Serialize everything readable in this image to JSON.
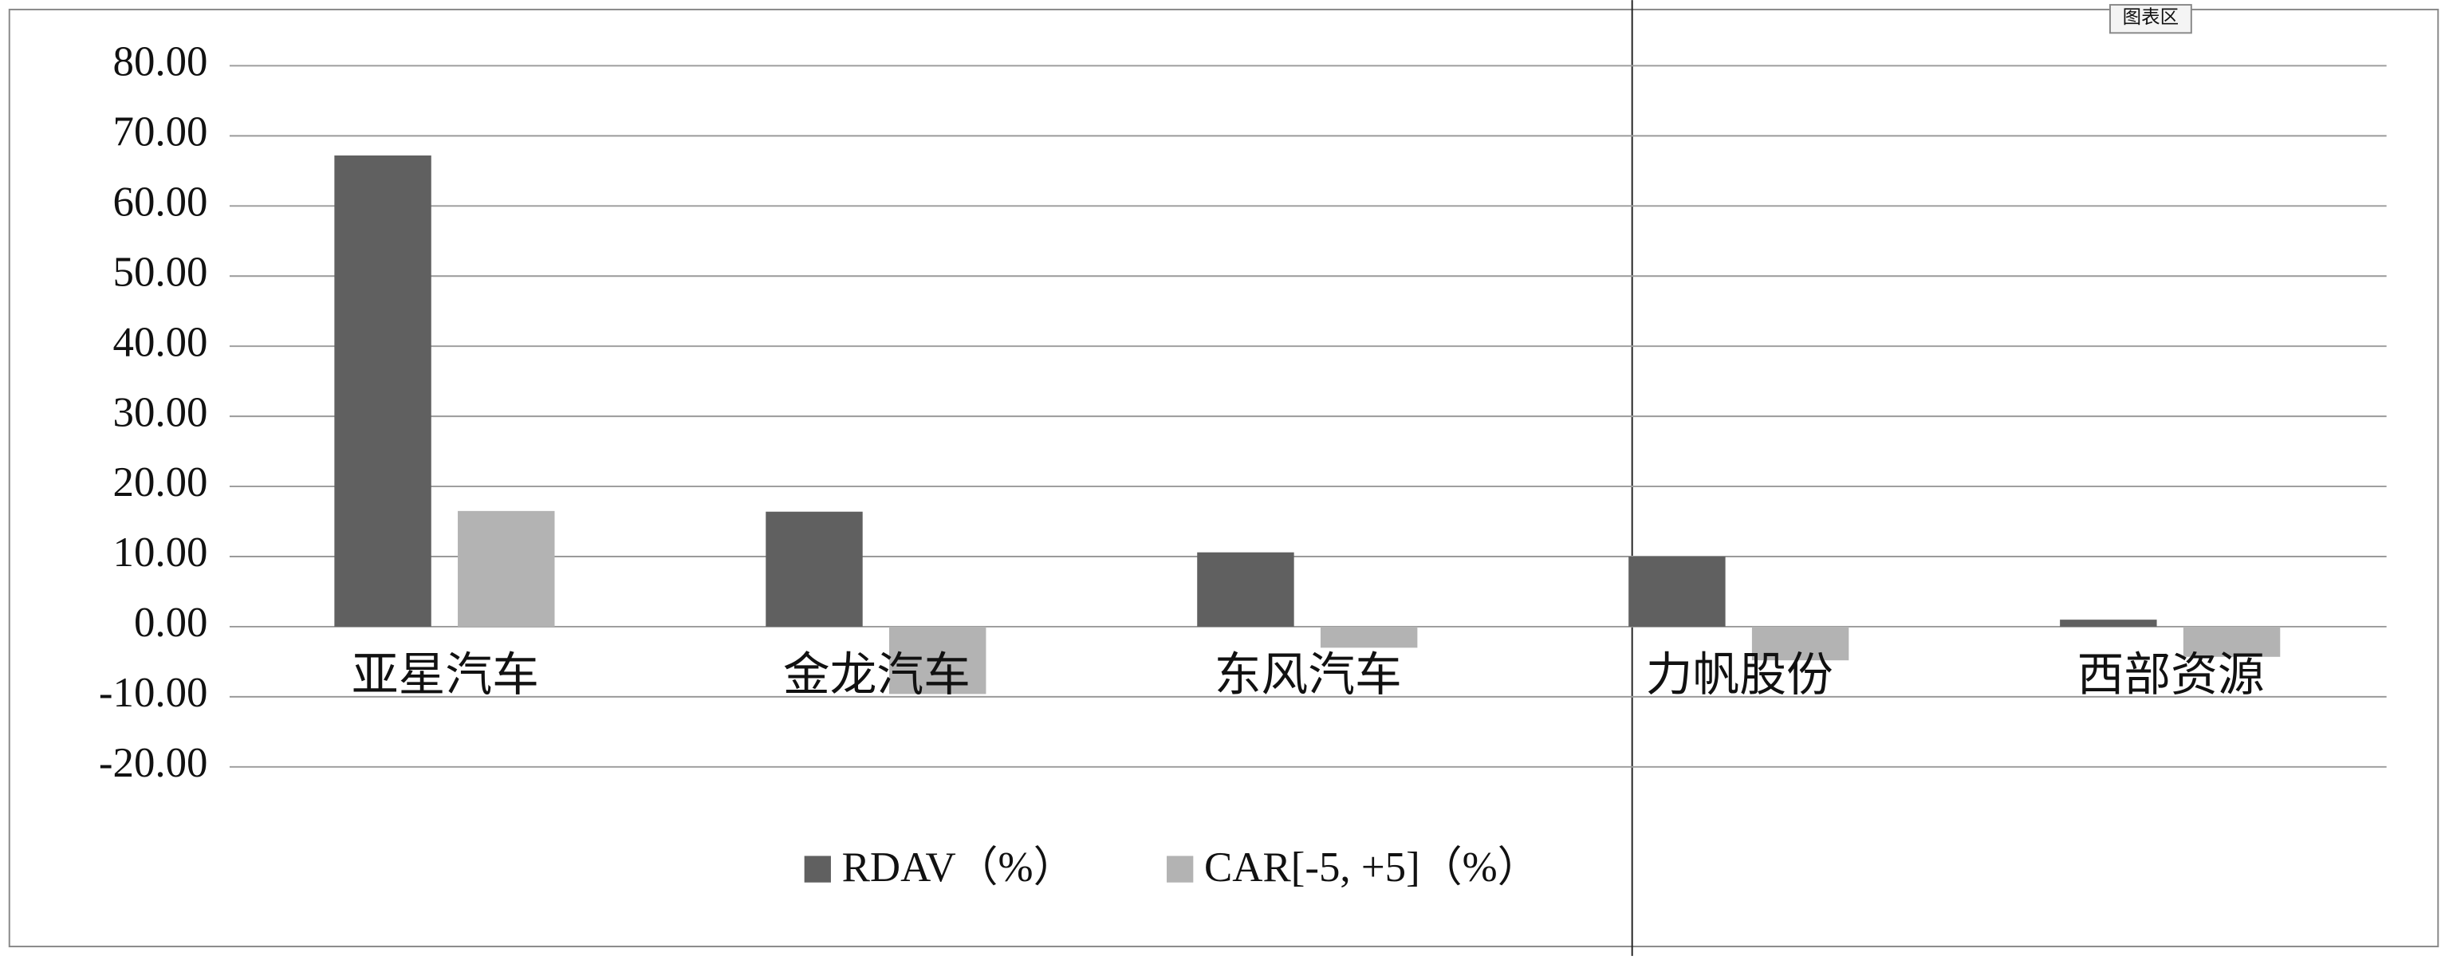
{
  "tooltip": "图表区",
  "chart_data": {
    "type": "bar",
    "categories": [
      "亚星汽车",
      "金龙汽车",
      "东风汽车",
      "力帆股份",
      "西部资源"
    ],
    "series": [
      {
        "name": "RDAV（%）",
        "color": "#606060",
        "values": [
          67.2,
          16.4,
          10.6,
          10.0,
          1.0
        ]
      },
      {
        "name": "CAR[-5, +5]（%）",
        "color": "#b3b3b3",
        "values": [
          16.5,
          -9.6,
          -3.0,
          -4.8,
          -4.3
        ]
      }
    ],
    "ylim": [
      -20,
      80
    ],
    "yticks": [
      {
        "value": -20,
        "label": "-20.00"
      },
      {
        "value": -10,
        "label": "-10.00"
      },
      {
        "value": 0,
        "label": "0.00"
      },
      {
        "value": 10,
        "label": "10.00"
      },
      {
        "value": 20,
        "label": "20.00"
      },
      {
        "value": 30,
        "label": "30.00"
      },
      {
        "value": 40,
        "label": "40.00"
      },
      {
        "value": 50,
        "label": "50.00"
      },
      {
        "value": 60,
        "label": "60.00"
      },
      {
        "value": 70,
        "label": "70.00"
      },
      {
        "value": 80,
        "label": "80.00"
      }
    ],
    "grid": true,
    "legend": "bottom"
  }
}
